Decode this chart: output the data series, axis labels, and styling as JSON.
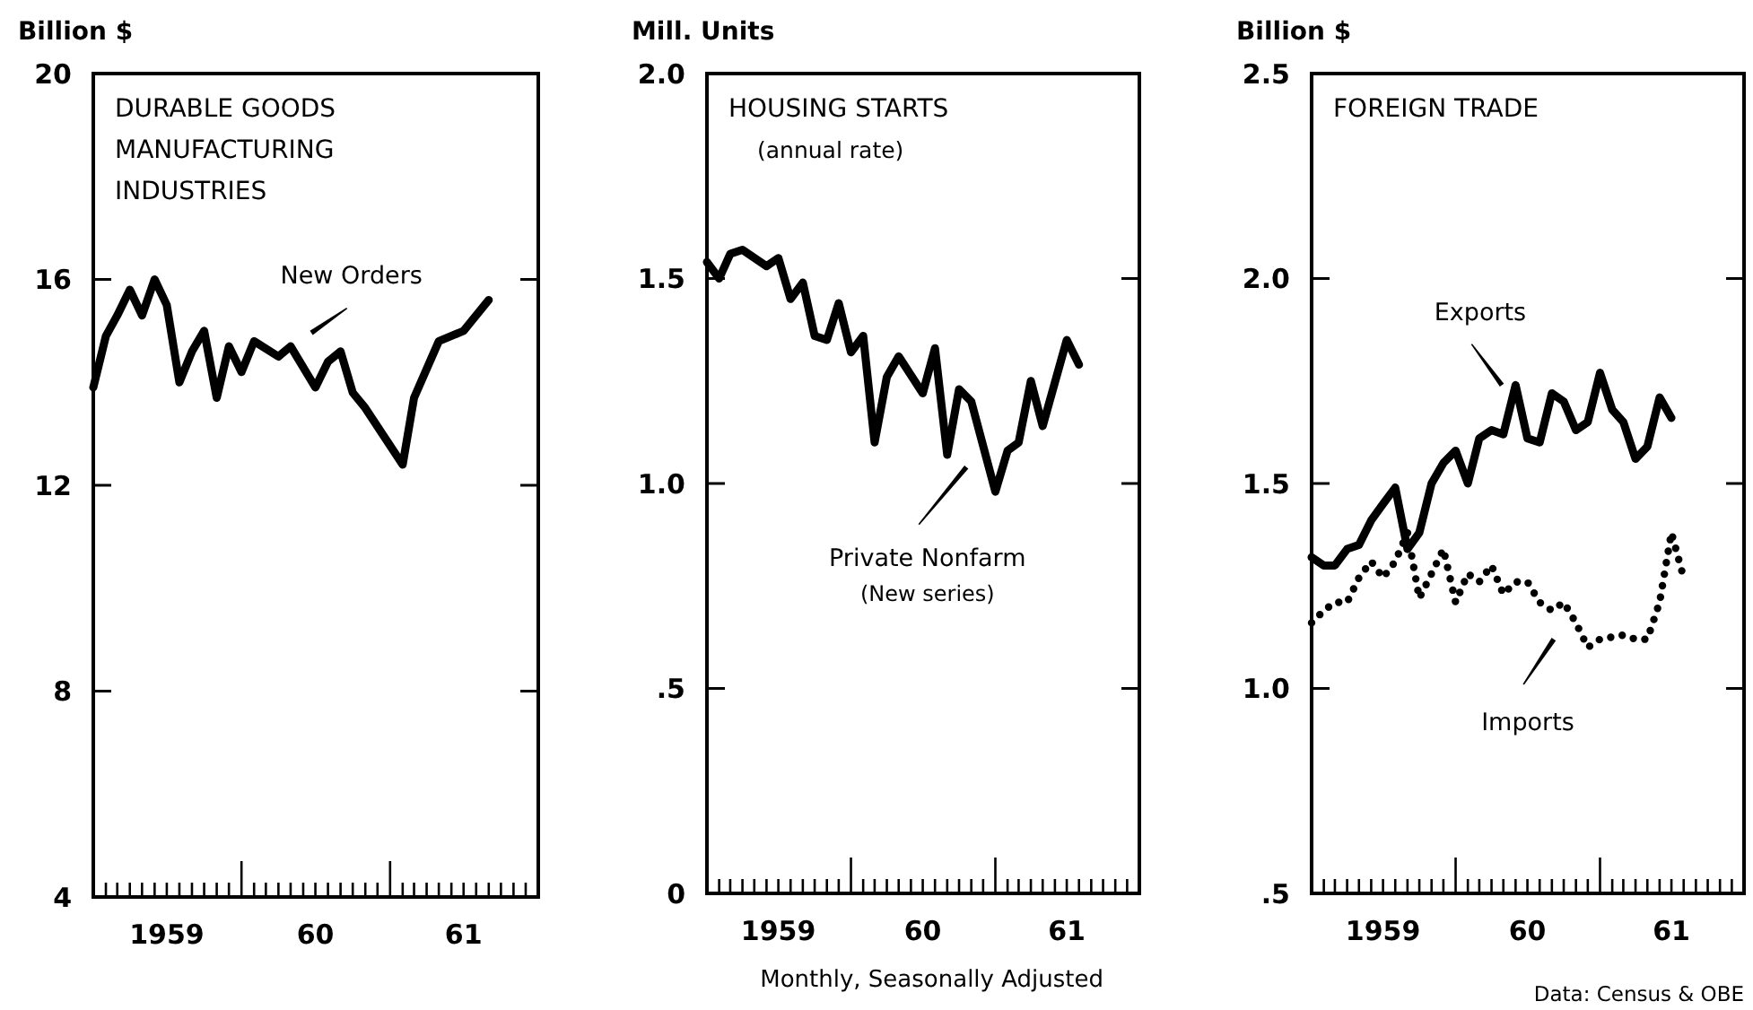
{
  "chart_data": [
    {
      "type": "line",
      "title": "DURABLE GOODS\nMANUFACTURING\nINDUSTRIES",
      "ylabel": "Billion $",
      "xlim": [
        "1959",
        "1962"
      ],
      "ylim": [
        4,
        20
      ],
      "yticks": [
        4,
        8,
        12,
        16,
        20
      ],
      "xticks": [
        {
          "value": "1959-02",
          "label": null
        },
        {
          "value": "1959-03",
          "label": null
        },
        {
          "value": "1959-04",
          "label": null
        },
        {
          "value": "1959-05",
          "label": null
        },
        {
          "value": "1959-06",
          "label": null
        },
        {
          "value": "1959-07",
          "label": "1959"
        },
        {
          "value": "1959-08",
          "label": null
        },
        {
          "value": "1959-09",
          "label": null
        },
        {
          "value": "1959-10",
          "label": null
        },
        {
          "value": "1959-11",
          "label": null
        },
        {
          "value": "1959-12",
          "label": null
        },
        {
          "value": "1960",
          "label": null
        },
        {
          "value": "1960-02",
          "label": null
        },
        {
          "value": "1960-03",
          "label": null
        },
        {
          "value": "1960-04",
          "label": null
        },
        {
          "value": "1960-05",
          "label": null
        },
        {
          "value": "1960-06",
          "label": null
        },
        {
          "value": "1960-07",
          "label": "60"
        },
        {
          "value": "1960-08",
          "label": null
        },
        {
          "value": "1960-09",
          "label": null
        },
        {
          "value": "1960-10",
          "label": null
        },
        {
          "value": "1960-11",
          "label": null
        },
        {
          "value": "1960-12",
          "label": null
        },
        {
          "value": "1961",
          "label": null
        },
        {
          "value": "1961-02",
          "label": null
        },
        {
          "value": "1961-03",
          "label": null
        },
        {
          "value": "1961-04",
          "label": null
        },
        {
          "value": "1961-05",
          "label": null
        },
        {
          "value": "1961-06",
          "label": null
        },
        {
          "value": "1961-07",
          "label": "61"
        },
        {
          "value": "1961-08",
          "label": null
        },
        {
          "value": "1961-09",
          "label": null
        },
        {
          "value": "1961-10",
          "label": null
        },
        {
          "value": "1961-11",
          "label": null
        },
        {
          "value": "1961-12",
          "label": null
        }
      ],
      "grid": false,
      "series": [
        {
          "name": "New Orders",
          "color": "#000000",
          "line_style": "solid",
          "x": [
            "1959-01",
            "1959-02",
            "1959-03",
            "1959-04",
            "1959-05",
            "1959-06",
            "1959-07",
            "1959-08",
            "1959-09",
            "1959-10",
            "1959-11",
            "1959-12",
            "1960-01",
            "1960-02",
            "1960-04",
            "1960-05",
            "1960-07",
            "1960-08",
            "1960-09",
            "1960-10",
            "1960-11",
            "1961-02",
            "1961-03",
            "1961-05",
            "1961-07",
            "1961-09"
          ],
          "values": [
            13.9,
            14.9,
            15.3,
            15.8,
            15.3,
            16.0,
            15.5,
            14.0,
            14.6,
            15.0,
            13.7,
            14.7,
            14.2,
            14.8,
            14.5,
            14.7,
            13.9,
            14.4,
            14.6,
            13.8,
            13.5,
            12.4,
            13.7,
            14.8,
            15.0,
            15.6
          ]
        }
      ]
    },
    {
      "type": "line",
      "title": "HOUSING STARTS",
      "subtitle": "(annual rate)",
      "ylabel": "Mill. Units",
      "xlim": [
        "1959",
        "1962"
      ],
      "ylim": [
        0,
        2
      ],
      "yticks": [
        0,
        {
          "value": 0.5,
          "label": ".5"
        },
        {
          "value": 1,
          "label": "1.0"
        },
        1.5,
        {
          "value": 2,
          "label": "2.0"
        }
      ],
      "xticks": [
        {
          "value": "1959-02",
          "label": null
        },
        {
          "value": "1959-03",
          "label": null
        },
        {
          "value": "1959-04",
          "label": null
        },
        {
          "value": "1959-05",
          "label": null
        },
        {
          "value": "1959-06",
          "label": null
        },
        {
          "value": "1959-07",
          "label": "1959"
        },
        {
          "value": "1959-08",
          "label": null
        },
        {
          "value": "1959-09",
          "label": null
        },
        {
          "value": "1959-10",
          "label": null
        },
        {
          "value": "1959-11",
          "label": null
        },
        {
          "value": "1959-12",
          "label": null
        },
        {
          "value": "1960",
          "label": null
        },
        {
          "value": "1960-02",
          "label": null
        },
        {
          "value": "1960-03",
          "label": null
        },
        {
          "value": "1960-04",
          "label": null
        },
        {
          "value": "1960-05",
          "label": null
        },
        {
          "value": "1960-06",
          "label": null
        },
        {
          "value": "1960-07",
          "label": "60"
        },
        {
          "value": "1960-08",
          "label": null
        },
        {
          "value": "1960-09",
          "label": null
        },
        {
          "value": "1960-10",
          "label": null
        },
        {
          "value": "1960-11",
          "label": null
        },
        {
          "value": "1960-12",
          "label": null
        },
        {
          "value": "1961",
          "label": null
        },
        {
          "value": "1961-02",
          "label": null
        },
        {
          "value": "1961-03",
          "label": null
        },
        {
          "value": "1961-04",
          "label": null
        },
        {
          "value": "1961-05",
          "label": null
        },
        {
          "value": "1961-06",
          "label": null
        },
        {
          "value": "1961-07",
          "label": "61"
        },
        {
          "value": "1961-08",
          "label": null
        },
        {
          "value": "1961-09",
          "label": null
        },
        {
          "value": "1961-10",
          "label": null
        },
        {
          "value": "1961-11",
          "label": null
        },
        {
          "value": "1961-12",
          "label": null
        }
      ],
      "grid": false,
      "annotations": [
        "Monthly, Seasonally Adjusted"
      ],
      "series": [
        {
          "name": "Private Nonfarm\n(New series)",
          "color": "#000000",
          "line_style": "solid",
          "x": [
            "1959-01",
            "1959-02",
            "1959-03",
            "1959-04",
            "1959-06",
            "1959-07",
            "1959-08",
            "1959-09",
            "1959-10",
            "1959-11",
            "1959-12",
            "1960-01",
            "1960-02",
            "1960-03",
            "1960-04",
            "1960-05",
            "1960-07",
            "1960-08",
            "1960-09",
            "1960-10",
            "1960-11",
            "1961-01",
            "1961-02",
            "1961-03",
            "1961-04",
            "1961-05",
            "1961-07",
            "1961-08"
          ],
          "values": [
            1.54,
            1.5,
            1.56,
            1.57,
            1.53,
            1.55,
            1.45,
            1.49,
            1.36,
            1.35,
            1.44,
            1.32,
            1.36,
            1.1,
            1.26,
            1.31,
            1.22,
            1.33,
            1.07,
            1.23,
            1.2,
            0.98,
            1.08,
            1.1,
            1.25,
            1.14,
            1.35,
            1.29
          ]
        }
      ]
    },
    {
      "type": "line",
      "title": "FOREIGN TRADE",
      "ylabel": "Billion $",
      "xlim": [
        "1959",
        "1962"
      ],
      "ylim": [
        0.5,
        2.5
      ],
      "yticks": [
        {
          "value": 0.5,
          "label": ".5"
        },
        {
          "value": 1,
          "label": "1.0"
        },
        1.5,
        {
          "value": 2,
          "label": "2.0"
        },
        2.5
      ],
      "xticks": [
        {
          "value": "1959-02",
          "label": null
        },
        {
          "value": "1959-03",
          "label": null
        },
        {
          "value": "1959-04",
          "label": null
        },
        {
          "value": "1959-05",
          "label": null
        },
        {
          "value": "1959-06",
          "label": null
        },
        {
          "value": "1959-07",
          "label": "1959"
        },
        {
          "value": "1959-08",
          "label": null
        },
        {
          "value": "1959-09",
          "label": null
        },
        {
          "value": "1959-10",
          "label": null
        },
        {
          "value": "1959-11",
          "label": null
        },
        {
          "value": "1959-12",
          "label": null
        },
        {
          "value": "1960",
          "label": null
        },
        {
          "value": "1960-02",
          "label": null
        },
        {
          "value": "1960-03",
          "label": null
        },
        {
          "value": "1960-04",
          "label": null
        },
        {
          "value": "1960-05",
          "label": null
        },
        {
          "value": "1960-06",
          "label": null
        },
        {
          "value": "1960-07",
          "label": "60"
        },
        {
          "value": "1960-08",
          "label": null
        },
        {
          "value": "1960-09",
          "label": null
        },
        {
          "value": "1960-10",
          "label": null
        },
        {
          "value": "1960-11",
          "label": null
        },
        {
          "value": "1960-12",
          "label": null
        },
        {
          "value": "1961",
          "label": null
        },
        {
          "value": "1961-02",
          "label": null
        },
        {
          "value": "1961-03",
          "label": null
        },
        {
          "value": "1961-04",
          "label": null
        },
        {
          "value": "1961-05",
          "label": null
        },
        {
          "value": "1961-06",
          "label": null
        },
        {
          "value": "1961-07",
          "label": "61"
        },
        {
          "value": "1961-08",
          "label": null
        },
        {
          "value": "1961-09",
          "label": null
        },
        {
          "value": "1961-10",
          "label": null
        },
        {
          "value": "1961-11",
          "label": null
        },
        {
          "value": "1961-12",
          "label": null
        }
      ],
      "grid": false,
      "annotations": [
        "Data:  Census & OBE"
      ],
      "series": [
        {
          "name": "Exports",
          "color": "#000000",
          "line_style": "solid",
          "x": [
            "1959-01",
            "1959-02",
            "1959-03",
            "1959-04",
            "1959-05",
            "1959-06",
            "1959-07",
            "1959-08",
            "1959-09",
            "1959-10",
            "1959-11",
            "1959-12",
            "1960-01",
            "1960-02",
            "1960-03",
            "1960-04",
            "1960-05",
            "1960-06",
            "1960-07",
            "1960-08",
            "1960-09",
            "1960-10",
            "1960-11",
            "1960-12",
            "1961-01",
            "1961-02",
            "1961-03",
            "1961-04",
            "1961-05",
            "1961-06",
            "1961-07"
          ],
          "values": [
            1.32,
            1.3,
            1.3,
            1.34,
            1.35,
            1.41,
            1.45,
            1.49,
            1.34,
            1.38,
            1.5,
            1.55,
            1.58,
            1.5,
            1.61,
            1.63,
            1.62,
            1.74,
            1.61,
            1.6,
            1.72,
            1.7,
            1.63,
            1.65,
            1.77,
            1.68,
            1.65,
            1.56,
            1.59,
            1.71,
            1.66
          ]
        },
        {
          "name": "Imports",
          "color": "#000000",
          "line_style": "dotted",
          "x": [
            "1959-01",
            "1959-02",
            "1959-03",
            "1959-04",
            "1959-05",
            "1959-06",
            "1959-07",
            "1959-08",
            "1959-09",
            "1959-10",
            "1959-11",
            "1959-12",
            "1960-01",
            "1960-02",
            "1960-03",
            "1960-04",
            "1960-05",
            "1960-06",
            "1960-07",
            "1960-08",
            "1960-09",
            "1960-10",
            "1960-11",
            "1960-12",
            "1961-01",
            "1961-03",
            "1961-04",
            "1961-05",
            "1961-06",
            "1961-07",
            "1961-08"
          ],
          "values": [
            1.16,
            1.19,
            1.21,
            1.21,
            1.27,
            1.31,
            1.27,
            1.31,
            1.38,
            1.22,
            1.28,
            1.34,
            1.21,
            1.28,
            1.26,
            1.3,
            1.23,
            1.26,
            1.26,
            1.21,
            1.19,
            1.21,
            1.16,
            1.1,
            1.12,
            1.13,
            1.12,
            1.12,
            1.21,
            1.38,
            1.27
          ]
        }
      ]
    }
  ]
}
